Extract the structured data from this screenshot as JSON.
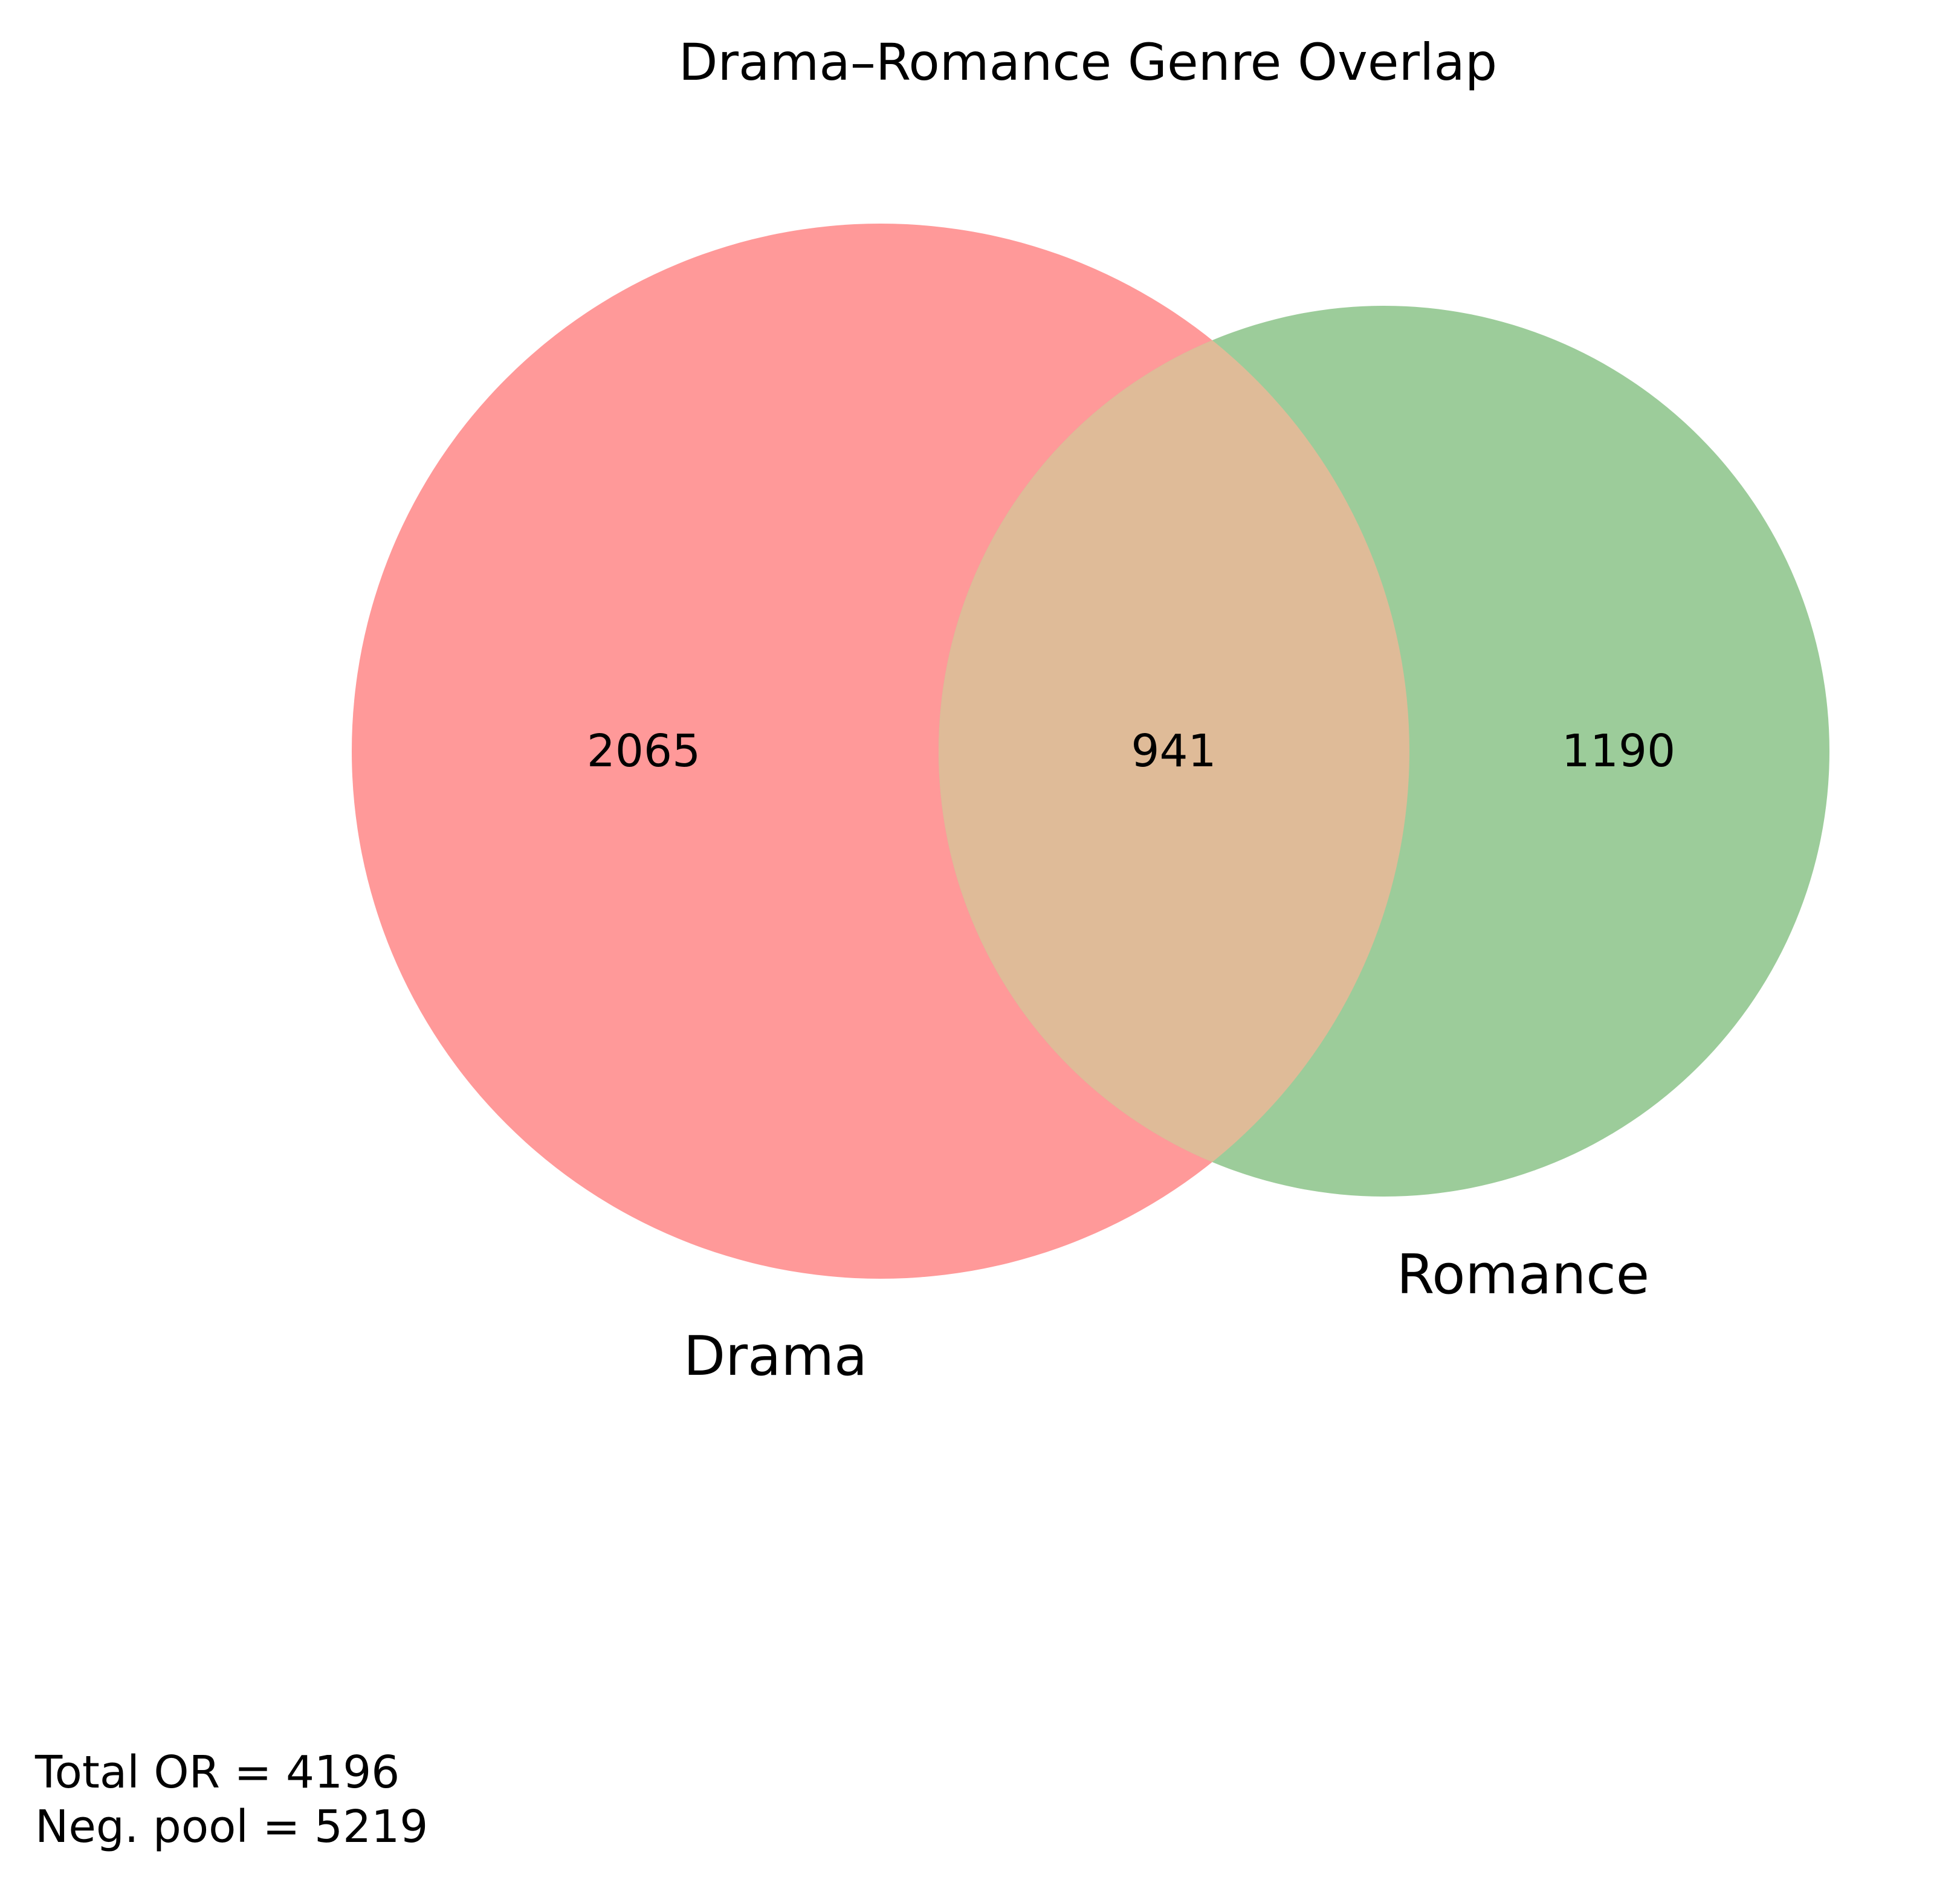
{
  "title": "Drama–Romance Genre Overlap",
  "sets": {
    "a": {
      "name": "Drama",
      "only_count": "2065",
      "color": "#ff9999"
    },
    "b": {
      "name": "Romance",
      "only_count": "1190",
      "color": "#9ccc9a"
    }
  },
  "intersection": {
    "count": "941",
    "color": "#dfbb98"
  },
  "footer": {
    "line1": "Total OR = 4196",
    "line2": "Neg. pool = 5219"
  }
}
